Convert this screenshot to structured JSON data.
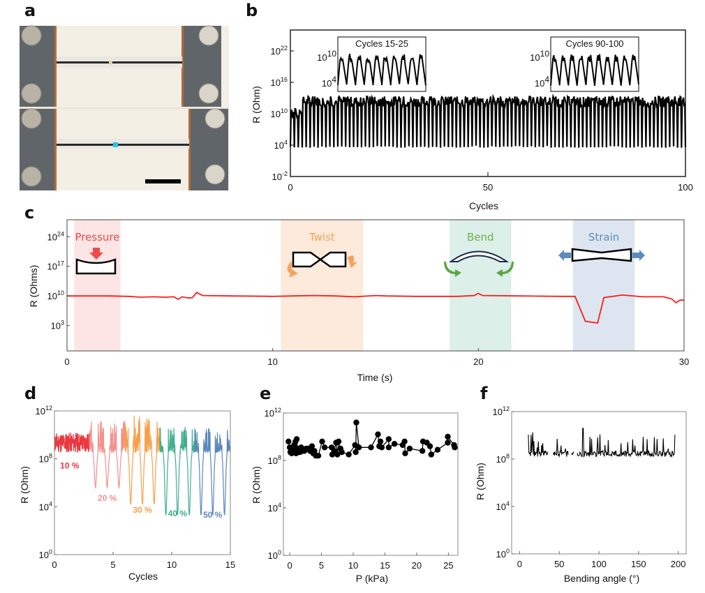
{
  "panel_labels": {
    "a": "a",
    "b": "b",
    "c": "c",
    "d": "d",
    "e": "e",
    "f": "f"
  },
  "photo": {
    "description": "Photograph of two stretchable fiber sensor devices clamped between electrode blocks with screws; the lower fiber has a blue marker dot",
    "colors": {
      "background": "#f3efe4",
      "clamp": "#5f6568",
      "screw": "#b8b3a6",
      "copper": "#b56a3c",
      "fiber": "#2a2a2a",
      "marker_top": "#d9cfa8",
      "marker_bottom": "#1ec8f0",
      "scale_bar": "#000000"
    }
  },
  "chart_data": [
    {
      "id": "b",
      "type": "line",
      "title": "",
      "xlabel": "Cycles",
      "ylabel": "R (Ohm)",
      "xlim": [
        0,
        100
      ],
      "ylim_log10": [
        -2,
        26
      ],
      "x_ticks": [
        "0",
        "50",
        "100"
      ],
      "y_ticks": [
        {
          "base": "10",
          "exp": "-2"
        },
        {
          "base": "10",
          "exp": "4"
        },
        {
          "base": "10",
          "exp": "10"
        },
        {
          "base": "10",
          "exp": "16"
        },
        {
          "base": "10",
          "exp": "22"
        }
      ],
      "series": [
        {
          "name": "R",
          "color": "#000000",
          "cycles": 100,
          "min_log10": 3.5,
          "max_log10_typical": 12.5,
          "max_log10_peak": 13.3
        }
      ],
      "insets": [
        {
          "title": "Cycles 15-25",
          "y_ticks": [
            {
              "base": "10",
              "exp": "10"
            },
            {
              "base": "10",
              "exp": "4"
            }
          ],
          "cycles": 10
        },
        {
          "title": "Cycles 90-100",
          "y_ticks": [
            {
              "base": "10",
              "exp": "10"
            },
            {
              "base": "10",
              "exp": "4"
            }
          ],
          "cycles": 10
        }
      ],
      "grid": false
    },
    {
      "id": "c",
      "type": "line",
      "xlabel": "Time (s)",
      "ylabel": "R (Ohms)",
      "xlim": [
        0,
        30
      ],
      "ylim_log10": [
        -3,
        28
      ],
      "x_ticks": [
        "0",
        "10",
        "20",
        "30"
      ],
      "y_ticks": [
        {
          "base": "10",
          "exp": "3"
        },
        {
          "base": "10",
          "exp": "10"
        },
        {
          "base": "10",
          "exp": "17"
        },
        {
          "base": "10",
          "exp": "24"
        }
      ],
      "line_color": "#ff1a1a",
      "regions": [
        {
          "label": "Pressure",
          "x0": 0.35,
          "x1": 2.6,
          "fill": "#fde5e5",
          "text_color": "#ef4a4a"
        },
        {
          "label": "Twist",
          "x0": 10.4,
          "x1": 14.4,
          "fill": "#fdeadb",
          "text_color": "#f7a25a"
        },
        {
          "label": "Bend",
          "x0": 18.6,
          "x1": 21.6,
          "fill": "#dcefe9",
          "text_color": "#72b04b"
        },
        {
          "label": "Strain",
          "x0": 24.6,
          "x1": 27.6,
          "fill": "#dde6f0",
          "text_color": "#5a8ac0"
        }
      ],
      "points": [
        [
          0,
          10
        ],
        [
          1,
          10
        ],
        [
          2,
          10
        ],
        [
          3,
          9.9
        ],
        [
          3.6,
          9.7
        ],
        [
          4.2,
          9.8
        ],
        [
          4.8,
          9.7
        ],
        [
          5.2,
          9.8
        ],
        [
          5.4,
          9.2
        ],
        [
          5.6,
          9.8
        ],
        [
          5.9,
          9.5
        ],
        [
          6.1,
          9.6
        ],
        [
          6.3,
          10.8
        ],
        [
          6.6,
          10.1
        ],
        [
          8,
          10
        ],
        [
          10,
          9.9
        ],
        [
          11,
          10
        ],
        [
          12,
          10.1
        ],
        [
          13,
          10
        ],
        [
          14,
          9.8
        ],
        [
          15,
          10.1
        ],
        [
          15.5,
          10
        ],
        [
          17,
          9.9
        ],
        [
          19,
          9.9
        ],
        [
          19.8,
          10.1
        ],
        [
          20,
          10.6
        ],
        [
          20.2,
          10.1
        ],
        [
          22,
          10
        ],
        [
          24,
          9.9
        ],
        [
          24.7,
          9.9
        ],
        [
          25.2,
          4
        ],
        [
          25.8,
          3.6
        ],
        [
          26.1,
          9.6
        ],
        [
          27,
          10.2
        ],
        [
          28,
          9.8
        ],
        [
          29,
          9.8
        ],
        [
          29.4,
          9.3
        ],
        [
          29.6,
          8.4
        ],
        [
          29.8,
          9
        ],
        [
          30,
          9
        ]
      ],
      "grid": false
    },
    {
      "id": "d",
      "type": "line",
      "xlabel": "Cycles",
      "ylabel": "R (Ohm)",
      "xlim": [
        0,
        15
      ],
      "ylim_log10": [
        0,
        12
      ],
      "x_ticks": [
        "0",
        "5",
        "10",
        "15"
      ],
      "y_ticks": [
        {
          "base": "10",
          "exp": "0"
        },
        {
          "base": "10",
          "exp": "4"
        },
        {
          "base": "10",
          "exp": "8"
        },
        {
          "base": "10",
          "exp": "12"
        }
      ],
      "series": [
        {
          "name": "10 %",
          "color": "#e8383d",
          "x_range": [
            0,
            3
          ],
          "min_log10": 8.5,
          "max_log10": 10.2
        },
        {
          "name": "20 %",
          "color": "#f4918e",
          "x_range": [
            3,
            6
          ],
          "min_log10": 5.6,
          "max_log10": 11.2
        },
        {
          "name": "30 %",
          "color": "#f7a04a",
          "x_range": [
            6,
            9
          ],
          "min_log10": 4.2,
          "max_log10": 11.7
        },
        {
          "name": "40 %",
          "color": "#3fae8e",
          "x_range": [
            9,
            12
          ],
          "min_log10": 3.3,
          "max_log10": 10.8
        },
        {
          "name": "50 %",
          "color": "#5a87bd",
          "x_range": [
            12,
            15
          ],
          "min_log10": 3.3,
          "max_log10": 10.6
        }
      ],
      "grid": false
    },
    {
      "id": "e",
      "type": "scatter",
      "xlabel": "P (kPa)",
      "ylabel": "R (Ohm)",
      "xlim": [
        -1,
        26.5
      ],
      "ylim_log10": [
        0,
        12
      ],
      "x_ticks": [
        "0",
        "5",
        "10",
        "15",
        "20",
        "25"
      ],
      "y_ticks": [
        {
          "base": "10",
          "exp": "0"
        },
        {
          "base": "10",
          "exp": "4"
        },
        {
          "base": "10",
          "exp": "8"
        },
        {
          "base": "10",
          "exp": "12"
        }
      ],
      "points": [
        [
          -0.2,
          9.6
        ],
        [
          0,
          9.1
        ],
        [
          0.1,
          8.7
        ],
        [
          0.3,
          8.6
        ],
        [
          0.5,
          8.9
        ],
        [
          0.7,
          9.3
        ],
        [
          0.9,
          9.6
        ],
        [
          1,
          8.6
        ],
        [
          1.1,
          9.8
        ],
        [
          1.2,
          9.0
        ],
        [
          1.4,
          8.7
        ],
        [
          1.6,
          8.7
        ],
        [
          1.8,
          9.1
        ],
        [
          2,
          8.8
        ],
        [
          2.3,
          8.8
        ],
        [
          2.6,
          9.0
        ],
        [
          2.9,
          9.0
        ],
        [
          3.2,
          8.8
        ],
        [
          3.5,
          9.2
        ],
        [
          3.7,
          8.6
        ],
        [
          3.9,
          8.8
        ],
        [
          4.1,
          8.4
        ],
        [
          4.5,
          8.4
        ],
        [
          5.1,
          9.6
        ],
        [
          5.5,
          9.1
        ],
        [
          6.6,
          9.1
        ],
        [
          6.7,
          8.5
        ],
        [
          7,
          8.8
        ],
        [
          7.3,
          9.5
        ],
        [
          7.5,
          8.5
        ],
        [
          7.7,
          9.6
        ],
        [
          8,
          9.0
        ],
        [
          8.2,
          8.7
        ],
        [
          9.3,
          8.5
        ],
        [
          10.3,
          9.3
        ],
        [
          10.4,
          8.7
        ],
        [
          10.5,
          11.2
        ],
        [
          10.9,
          9.1
        ],
        [
          12.8,
          9.1
        ],
        [
          13.9,
          10.2
        ],
        [
          14.1,
          9.2
        ],
        [
          14.3,
          9.6
        ],
        [
          14.5,
          9.1
        ],
        [
          15.6,
          9.8
        ],
        [
          15.6,
          9.1
        ],
        [
          16.5,
          9.4
        ],
        [
          17.8,
          9.3
        ],
        [
          18.1,
          9.6
        ],
        [
          18.2,
          8.6
        ],
        [
          18.9,
          9.0
        ],
        [
          20.9,
          8.8
        ],
        [
          21,
          9.6
        ],
        [
          21.6,
          9.5
        ],
        [
          22.1,
          9.2
        ],
        [
          22.3,
          8.5
        ],
        [
          23.3,
          8.9
        ],
        [
          24.9,
          9.5
        ],
        [
          24.9,
          10.0
        ],
        [
          25.9,
          9.3
        ],
        [
          26,
          9.1
        ]
      ],
      "marker_color": "#000000",
      "grid": false
    },
    {
      "id": "f",
      "type": "line",
      "xlabel": "Bending angle (°)",
      "ylabel": "R (Ohm)",
      "xlim": [
        -10,
        210
      ],
      "ylim_log10": [
        0,
        12
      ],
      "x_ticks": [
        "0",
        "50",
        "100",
        "150",
        "200"
      ],
      "y_ticks": [
        {
          "base": "10",
          "exp": "0"
        },
        {
          "base": "10",
          "exp": "4"
        },
        {
          "base": "10",
          "exp": "8"
        },
        {
          "base": "10",
          "exp": "12"
        }
      ],
      "series": [
        {
          "name": "R",
          "color": "#000000",
          "x_range": [
            11,
            196
          ],
          "baseline_log10": 8.2,
          "max_log10_peak": 10.6,
          "gaps": [
            [
              36,
              42
            ],
            [
              62,
              65
            ],
            [
              69,
              72
            ]
          ]
        }
      ],
      "grid": false
    }
  ]
}
